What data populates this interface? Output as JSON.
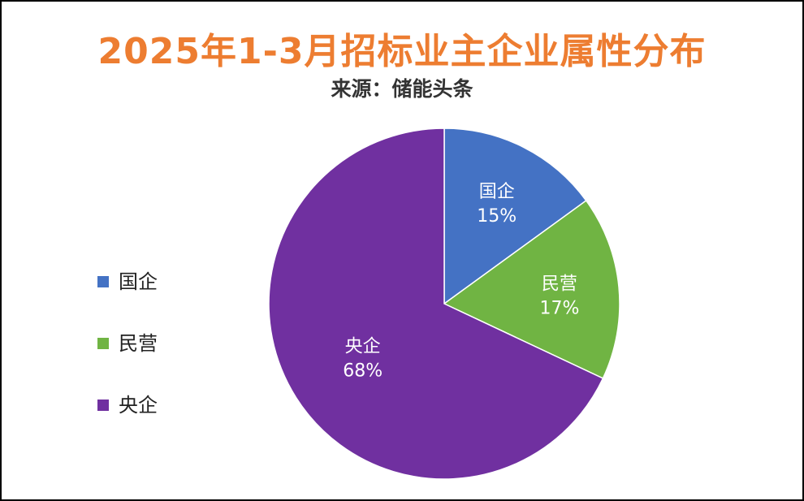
{
  "chart_data": {
    "type": "pie",
    "title": "2025年1-3月招标业主企业属性分布",
    "subtitle": "来源：储能头条",
    "legend_position": "left",
    "slices": [
      {
        "name": "国企",
        "value": 15,
        "label": "15%",
        "color": "#4472C4"
      },
      {
        "name": "民营",
        "value": 17,
        "label": "17%",
        "color": "#70B443"
      },
      {
        "name": "央企",
        "value": 68,
        "label": "68%",
        "color": "#7030A0"
      }
    ]
  },
  "colors": {
    "title": "#ED7D31",
    "frame": "#000000",
    "slice_border": "#ffffff"
  }
}
